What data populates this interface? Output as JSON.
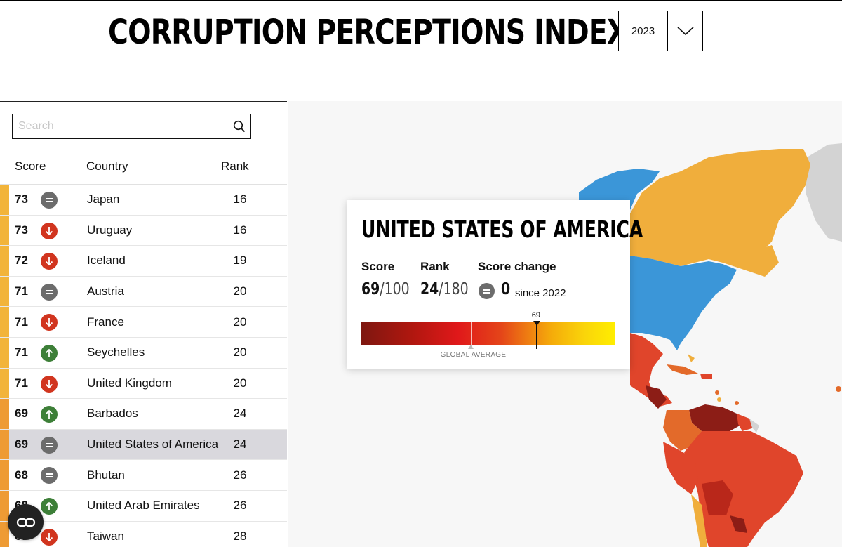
{
  "header": {
    "title": "CORRUPTION PERCEPTIONS INDEX"
  },
  "year_select": {
    "value": "2023"
  },
  "search": {
    "placeholder": "Search"
  },
  "columns": {
    "score": "Score",
    "country": "Country",
    "rank": "Rank"
  },
  "rows": [
    {
      "score": "73",
      "change": "equal",
      "country": "Japan",
      "rank": "16",
      "stripe": "#f2b43a"
    },
    {
      "score": "73",
      "change": "down",
      "country": "Uruguay",
      "rank": "16",
      "stripe": "#f2b43a"
    },
    {
      "score": "72",
      "change": "down",
      "country": "Iceland",
      "rank": "19",
      "stripe": "#f2b43a"
    },
    {
      "score": "71",
      "change": "equal",
      "country": "Austria",
      "rank": "20",
      "stripe": "#f2b43a"
    },
    {
      "score": "71",
      "change": "down",
      "country": "France",
      "rank": "20",
      "stripe": "#f2b43a"
    },
    {
      "score": "71",
      "change": "up",
      "country": "Seychelles",
      "rank": "20",
      "stripe": "#f2b43a"
    },
    {
      "score": "71",
      "change": "down",
      "country": "United Kingdom",
      "rank": "20",
      "stripe": "#f2b43a"
    },
    {
      "score": "69",
      "change": "up",
      "country": "Barbados",
      "rank": "24",
      "stripe": "#ee9b34"
    },
    {
      "score": "69",
      "change": "equal",
      "country": "United States of America",
      "rank": "24",
      "stripe": "#ee9b34",
      "selected": true
    },
    {
      "score": "68",
      "change": "equal",
      "country": "Bhutan",
      "rank": "26",
      "stripe": "#ee9b34"
    },
    {
      "score": "68",
      "change": "up",
      "country": "United Arab Emirates",
      "rank": "26",
      "stripe": "#ee9b34"
    },
    {
      "score": "67",
      "change": "down",
      "country": "Taiwan",
      "rank": "28",
      "stripe": "#ee9b34"
    }
  ],
  "popup": {
    "country": "UNITED STATES OF AMERICA",
    "score_label": "Score",
    "score": "69",
    "score_max": "/100",
    "rank_label": "Rank",
    "rank": "24",
    "rank_max": "/180",
    "change_label": "Score change",
    "change_value": "0",
    "change_since": "since 2022",
    "gauge_value": 69,
    "gauge_value_label": "69",
    "global_average": 43,
    "global_average_label": "GLOBAL AVERAGE"
  },
  "colors": {
    "up": "#3d7f38",
    "down": "#d1351f",
    "equal": "#6c6c6c",
    "usa": "#3b96d8",
    "canada": "#f0ae3c",
    "greenland": "#d3d3d3",
    "latin_dark": "#8c1d16",
    "latin_red": "#e0452b",
    "latin_orange": "#e36a2a"
  }
}
